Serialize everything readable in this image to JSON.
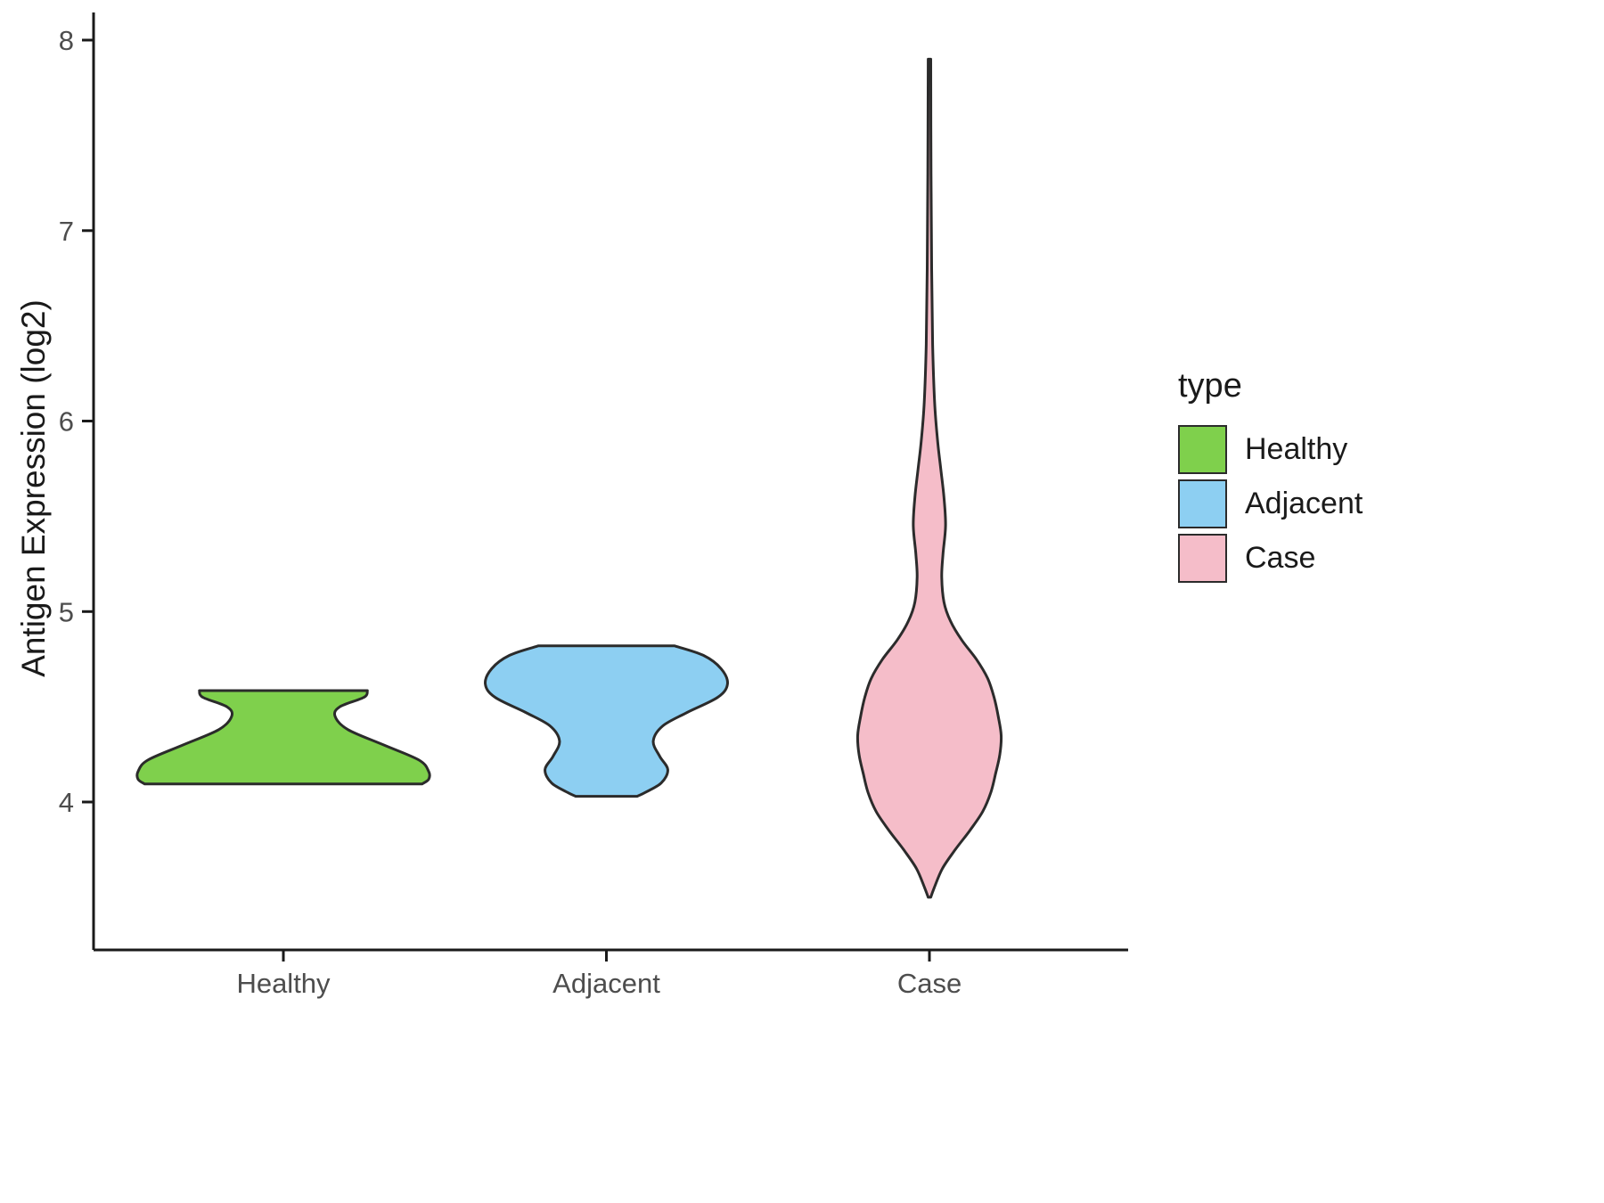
{
  "chart_data": {
    "type": "violin",
    "title": "",
    "xlabel": "",
    "ylabel": "Antigen Expression (log2)",
    "categories": [
      "Healthy",
      "Adjacent",
      "Case"
    ],
    "y_ticks": [
      4,
      5,
      6,
      7,
      8
    ],
    "ylim": [
      3.3,
      8.1
    ],
    "grid": false,
    "legend": {
      "title": "type",
      "position": "right",
      "entries": [
        {
          "label": "Healthy",
          "color": "#7FD04C"
        },
        {
          "label": "Adjacent",
          "color": "#8DCFF2"
        },
        {
          "label": "Case",
          "color": "#F5BDC9"
        }
      ]
    },
    "style": {
      "outline_color": "#2b2b2b",
      "axis_color": "#1a1a1a",
      "tick_label_color": "#4D4D4D"
    },
    "series": [
      {
        "name": "Healthy",
        "color": "#7FD04C",
        "profile": [
          [
            4.585,
            0.26
          ],
          [
            4.55,
            0.25
          ],
          [
            4.5,
            0.175
          ],
          [
            4.45,
            0.16
          ],
          [
            4.38,
            0.2
          ],
          [
            4.3,
            0.31
          ],
          [
            4.22,
            0.42
          ],
          [
            4.16,
            0.45
          ],
          [
            4.12,
            0.45
          ],
          [
            4.095,
            0.43
          ]
        ]
      },
      {
        "name": "Adjacent",
        "color": "#8DCFF2",
        "profile": [
          [
            4.82,
            0.21
          ],
          [
            4.77,
            0.3
          ],
          [
            4.7,
            0.355
          ],
          [
            4.62,
            0.375
          ],
          [
            4.55,
            0.345
          ],
          [
            4.47,
            0.25
          ],
          [
            4.4,
            0.175
          ],
          [
            4.32,
            0.145
          ],
          [
            4.24,
            0.165
          ],
          [
            4.17,
            0.19
          ],
          [
            4.1,
            0.17
          ],
          [
            4.05,
            0.12
          ],
          [
            4.03,
            0.095
          ]
        ]
      },
      {
        "name": "Case",
        "color": "#F5BDC9",
        "profile": [
          [
            7.9,
            0.004
          ],
          [
            7.3,
            0.005
          ],
          [
            6.8,
            0.007
          ],
          [
            6.4,
            0.01
          ],
          [
            6.1,
            0.016
          ],
          [
            5.9,
            0.025
          ],
          [
            5.75,
            0.035
          ],
          [
            5.6,
            0.045
          ],
          [
            5.45,
            0.05
          ],
          [
            5.3,
            0.042
          ],
          [
            5.18,
            0.038
          ],
          [
            5.05,
            0.045
          ],
          [
            4.95,
            0.065
          ],
          [
            4.85,
            0.1
          ],
          [
            4.75,
            0.145
          ],
          [
            4.65,
            0.18
          ],
          [
            4.55,
            0.2
          ],
          [
            4.45,
            0.213
          ],
          [
            4.35,
            0.222
          ],
          [
            4.25,
            0.218
          ],
          [
            4.15,
            0.205
          ],
          [
            4.05,
            0.19
          ],
          [
            3.95,
            0.165
          ],
          [
            3.85,
            0.125
          ],
          [
            3.75,
            0.08
          ],
          [
            3.65,
            0.04
          ],
          [
            3.55,
            0.015
          ],
          [
            3.5,
            0.004
          ]
        ]
      }
    ]
  }
}
